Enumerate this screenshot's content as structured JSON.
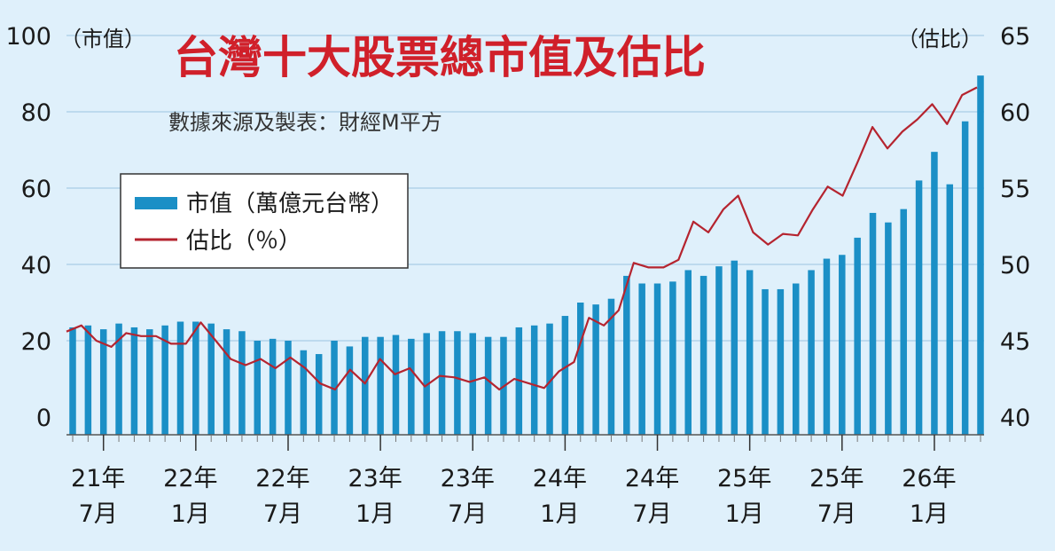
{
  "chart_data": {
    "type": "bar+line",
    "title": "台灣十大股票總市值及估比",
    "subtitle": "數據來源及製表：財經M平方",
    "left_axis": {
      "unit_label": "（市值）",
      "range": [
        0,
        100
      ],
      "ticks": [
        "0",
        "20",
        "40",
        "60",
        "80",
        "100"
      ]
    },
    "right_axis": {
      "unit_label": "（估比）",
      "range": [
        40,
        65
      ],
      "ticks": [
        "40",
        "45",
        "50",
        "55",
        "60",
        "65"
      ]
    },
    "x_tick_labels": [
      {
        "year": "21年",
        "month": "7月",
        "index": 2
      },
      {
        "year": "22年",
        "month": "1月",
        "index": 8
      },
      {
        "year": "22年",
        "month": "7月",
        "index": 14
      },
      {
        "year": "23年",
        "month": "1月",
        "index": 20
      },
      {
        "year": "23年",
        "month": "7月",
        "index": 26
      },
      {
        "year": "24年",
        "month": "1月",
        "index": 32
      },
      {
        "year": "24年",
        "month": "7月",
        "index": 38
      },
      {
        "year": "25年",
        "month": "1月",
        "index": 44
      },
      {
        "year": "25年",
        "month": "7月",
        "index": 50
      },
      {
        "year": "26年",
        "month": "1月",
        "index": 56
      }
    ],
    "legend": {
      "position": "top-left"
    },
    "series": [
      {
        "name": "市值（萬億元台幣）",
        "type": "bar",
        "axis": "left",
        "color": "#1b8fc6",
        "values": [
          23.5,
          24,
          23,
          24.5,
          23.5,
          23,
          24,
          25,
          25,
          24.5,
          23,
          22.5,
          20,
          20.5,
          20,
          17.5,
          16.5,
          20,
          18.5,
          21,
          21,
          21.5,
          20.5,
          22,
          22.5,
          22.5,
          22,
          21,
          21,
          23.5,
          24,
          24.5,
          26.5,
          30,
          29.5,
          31,
          37,
          35,
          35,
          35.5,
          38.5,
          37,
          39.5,
          41,
          38.5,
          33.5,
          33.5,
          35,
          38.5,
          41.5,
          42.5,
          47,
          53.5,
          51,
          54.5,
          62,
          69.5,
          61,
          77.5,
          89.5
        ]
      },
      {
        "name": "估比（％）",
        "type": "line",
        "axis": "right",
        "color": "#b5242f",
        "values": [
          45.6,
          46,
          45,
          44.6,
          45.5,
          45.3,
          45.3,
          44.8,
          44.8,
          46.2,
          45,
          43.8,
          43.4,
          43.8,
          43.2,
          43.9,
          43.2,
          42.2,
          41.8,
          43.1,
          42.2,
          43.8,
          42.8,
          43.2,
          42,
          42.7,
          42.6,
          42.3,
          42.6,
          41.8,
          42.5,
          42.2,
          41.9,
          43,
          43.6,
          46.5,
          46,
          47,
          50.1,
          49.8,
          49.8,
          50.3,
          52.8,
          52.1,
          53.6,
          54.5,
          52.1,
          51.3,
          52,
          51.9,
          53.6,
          55.1,
          54.5,
          56.7,
          59,
          57.6,
          58.7,
          59.5,
          60.5,
          59.2,
          61.1,
          61.6
        ]
      }
    ]
  }
}
